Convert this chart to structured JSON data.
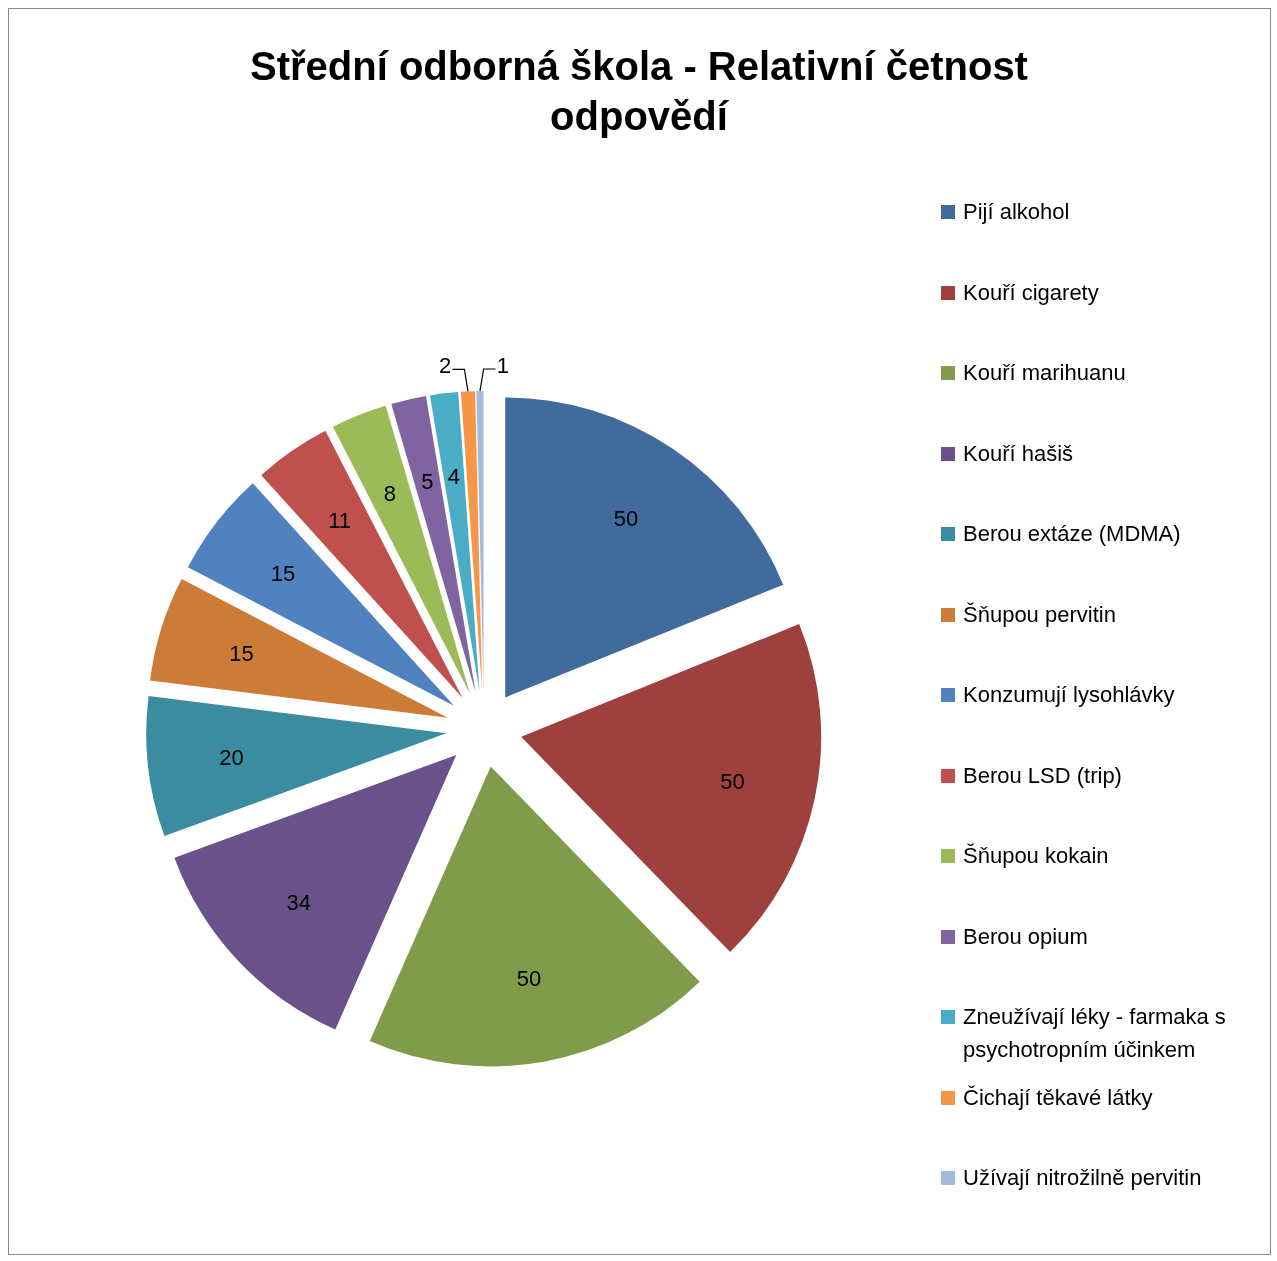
{
  "chart_data": {
    "type": "pie",
    "title": "Střední odborná škola - Relativní četnost odpovědí",
    "categories": [
      "Pijí alkohol",
      "Kouří cigarety",
      "Kouří marihuanu",
      "Kouří hašiš",
      "Berou extáze (MDMA)",
      "Šňupou pervitin",
      "Konzumují lysohlávky",
      "Berou LSD (trip)",
      "Šňupou kokain",
      "Berou opium",
      "Zneužívají léky - farmaka s psychotropním účinkem",
      "Čichají těkavé látky",
      "Užívají nitrožilně pervitin"
    ],
    "values": [
      50,
      50,
      50,
      34,
      20,
      15,
      15,
      11,
      8,
      5,
      4,
      2,
      1
    ],
    "colors": [
      "#416b9c",
      "#9e413e",
      "#809c4a",
      "#6a5189",
      "#3b8ba1",
      "#cc7c37",
      "#4f82be",
      "#c0504d",
      "#9bbb59",
      "#8064a2",
      "#4bacc6",
      "#f79646",
      "#a7b9da"
    ],
    "data_labels": true,
    "legend": "right"
  }
}
